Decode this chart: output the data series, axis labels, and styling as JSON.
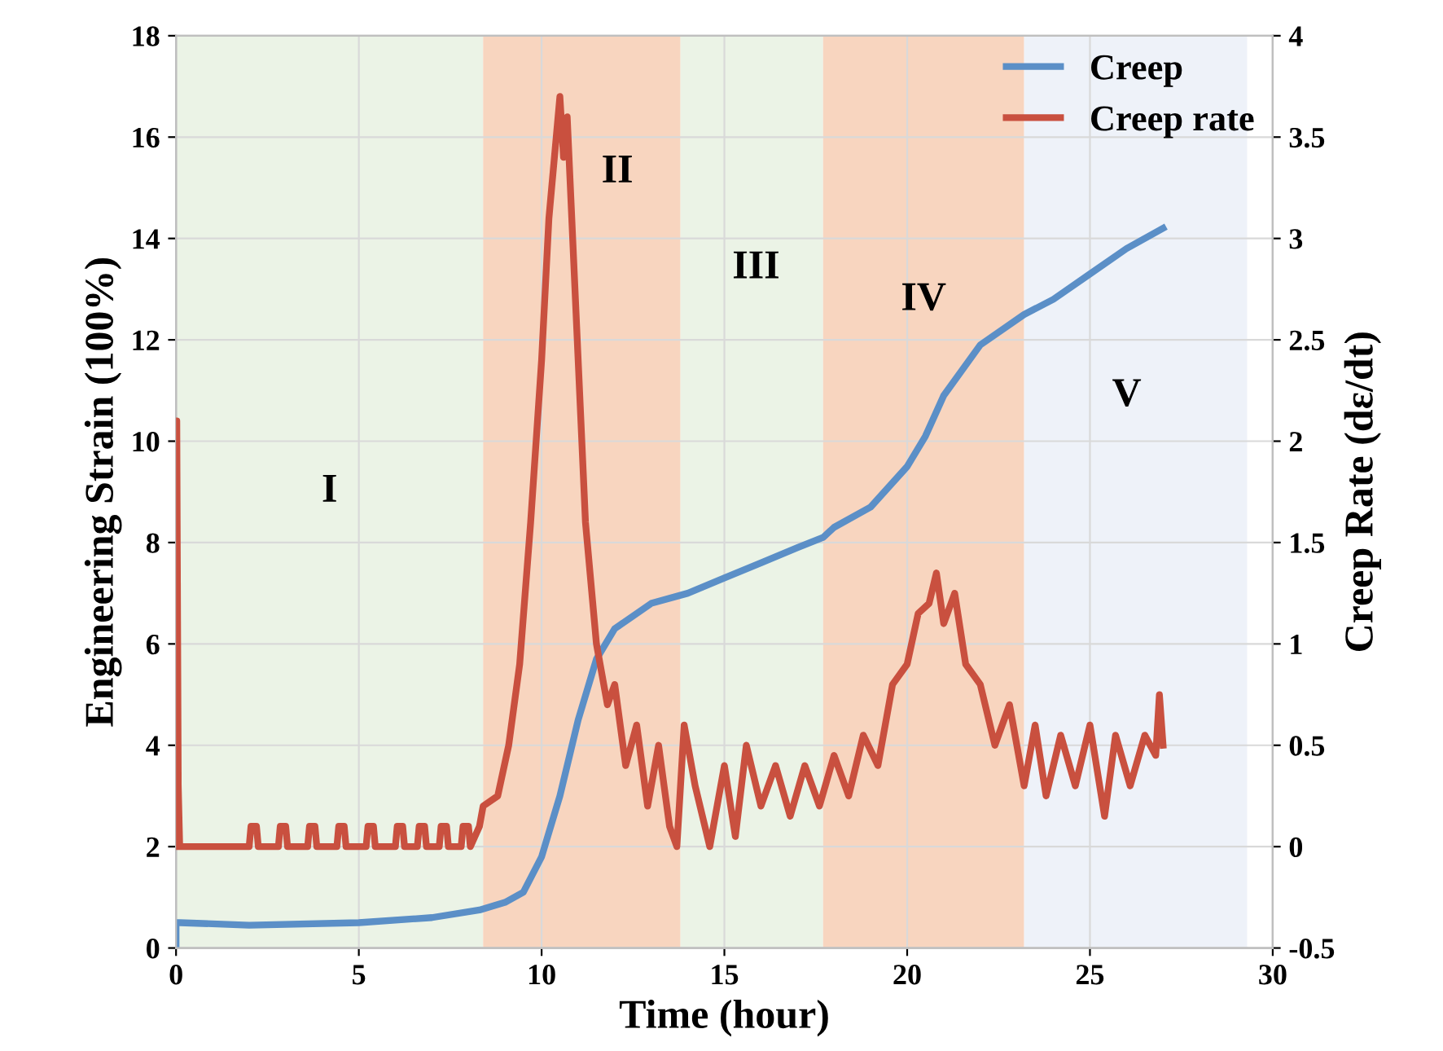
{
  "chart_data": {
    "type": "line",
    "xlabel": "Time (hour)",
    "ylabel": "Engineering Strain (100%)",
    "y2label": "Creep Rate (dε/dt)",
    "xlim": [
      0,
      30
    ],
    "xticks": [
      0,
      5,
      10,
      15,
      20,
      25,
      30
    ],
    "ylim": [
      0,
      18
    ],
    "yticks": [
      0,
      2,
      4,
      6,
      8,
      10,
      12,
      14,
      16,
      18
    ],
    "y2lim": [
      -0.5,
      4
    ],
    "y2ticks": [
      {
        "value": -0.5,
        "label": "-0.5"
      },
      0,
      0.5,
      1,
      1.5,
      2,
      2.5,
      3,
      3.5,
      4
    ],
    "grid": true,
    "legend": "top right",
    "line_style": "solid",
    "marker": "none",
    "bands": [
      {
        "axis": "x",
        "from": 0,
        "to": 8.4,
        "color": "#ebf3e6",
        "label": "I"
      },
      {
        "axis": "x",
        "from": 8.4,
        "to": 13.8,
        "color": "#f8d5bf",
        "label": "II"
      },
      {
        "axis": "x",
        "from": 13.8,
        "to": 17.7,
        "color": "#ebf3e6",
        "label": "III"
      },
      {
        "axis": "x",
        "from": 17.7,
        "to": 23.2,
        "color": "#f8d5bf",
        "label": "IV"
      },
      {
        "axis": "x",
        "from": 23.2,
        "to": 29.3,
        "color": "#eef2f9",
        "label": "V"
      }
    ],
    "series": [
      {
        "name": "Creep",
        "color": "#5b8fc7",
        "x": [
          0,
          0,
          0.1,
          2,
          5,
          7,
          8.3,
          9,
          9.5,
          10,
          10.5,
          11,
          11.5,
          12,
          13,
          14,
          15,
          16,
          17,
          17.7,
          18,
          19,
          20,
          20.5,
          21,
          22,
          23.2,
          24,
          25,
          26,
          27
        ],
        "values": [
          0,
          0.5,
          0.5,
          0.45,
          0.5,
          0.6,
          0.75,
          0.9,
          1.1,
          1.8,
          3.0,
          4.5,
          5.7,
          6.3,
          6.8,
          7.0,
          7.3,
          7.6,
          7.9,
          8.1,
          8.3,
          8.7,
          9.5,
          10.1,
          10.9,
          11.9,
          12.5,
          12.8,
          13.3,
          13.8,
          14.2
        ]
      },
      {
        "name": "Creep rate",
        "color": "#c9503f",
        "axis": "y2",
        "x": [
          0,
          0.02,
          0.06,
          0.1,
          2,
          2.05,
          2.2,
          2.25,
          2.8,
          2.85,
          3.0,
          3.05,
          3.6,
          3.65,
          3.8,
          3.85,
          4.4,
          4.45,
          4.6,
          4.65,
          5.2,
          5.25,
          5.4,
          5.45,
          6.0,
          6.05,
          6.2,
          6.25,
          6.6,
          6.65,
          6.8,
          6.85,
          7.2,
          7.25,
          7.4,
          7.45,
          7.8,
          7.85,
          8.0,
          8.05,
          8.3,
          8.4,
          8.8,
          9.1,
          9.4,
          9.7,
          10.0,
          10.2,
          10.4,
          10.5,
          10.6,
          10.7,
          10.8,
          11.0,
          11.2,
          11.5,
          11.8,
          12.0,
          12.3,
          12.6,
          12.9,
          13.2,
          13.5,
          13.7,
          13.9,
          14.2,
          14.6,
          15.0,
          15.3,
          15.6,
          16.0,
          16.4,
          16.8,
          17.2,
          17.6,
          18.0,
          18.4,
          18.8,
          19.2,
          19.6,
          20.0,
          20.3,
          20.6,
          20.8,
          21.0,
          21.3,
          21.6,
          22.0,
          22.4,
          22.8,
          23.2,
          23.5,
          23.8,
          24.2,
          24.6,
          25.0,
          25.4,
          25.7,
          26.1,
          26.5,
          26.8,
          26.9,
          27.0
        ],
        "values": [
          0,
          2.1,
          0.3,
          0,
          0,
          0.1,
          0.1,
          0,
          0,
          0.1,
          0.1,
          0,
          0,
          0.1,
          0.1,
          0,
          0,
          0.1,
          0.1,
          0,
          0,
          0.1,
          0.1,
          0,
          0,
          0.1,
          0.1,
          0,
          0,
          0.1,
          0.1,
          0,
          0,
          0.1,
          0.1,
          0,
          0,
          0.1,
          0.1,
          0,
          0.1,
          0.2,
          0.25,
          0.5,
          0.9,
          1.6,
          2.4,
          3.1,
          3.5,
          3.7,
          3.4,
          3.6,
          3.2,
          2.4,
          1.6,
          1.0,
          0.7,
          0.8,
          0.4,
          0.6,
          0.2,
          0.5,
          0.1,
          0.0,
          0.6,
          0.3,
          0.0,
          0.4,
          0.05,
          0.5,
          0.2,
          0.4,
          0.15,
          0.4,
          0.2,
          0.45,
          0.25,
          0.55,
          0.4,
          0.8,
          0.9,
          1.15,
          1.2,
          1.35,
          1.1,
          1.25,
          0.9,
          0.8,
          0.5,
          0.7,
          0.3,
          0.6,
          0.25,
          0.55,
          0.3,
          0.6,
          0.15,
          0.55,
          0.3,
          0.55,
          0.45,
          0.75,
          0.5
        ]
      }
    ]
  }
}
